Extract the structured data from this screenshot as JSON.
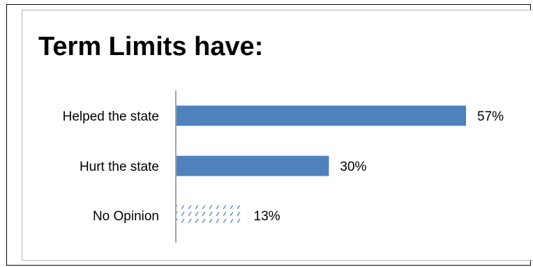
{
  "chart_data": {
    "type": "bar",
    "orientation": "horizontal",
    "title": "Term Limits have:",
    "categories": [
      "Helped the state",
      "Hurt the state",
      "No Opinion"
    ],
    "values": [
      57,
      30,
      13
    ],
    "value_labels": [
      "57%",
      "30%",
      "13%"
    ],
    "xlim": [
      0,
      57
    ],
    "xlabel": "",
    "ylabel": "",
    "grid": false,
    "legend": "none",
    "colors": {
      "bar": "#4f81bd",
      "no_opinion_pattern": "#4f81bd",
      "axis": "#868686"
    }
  }
}
